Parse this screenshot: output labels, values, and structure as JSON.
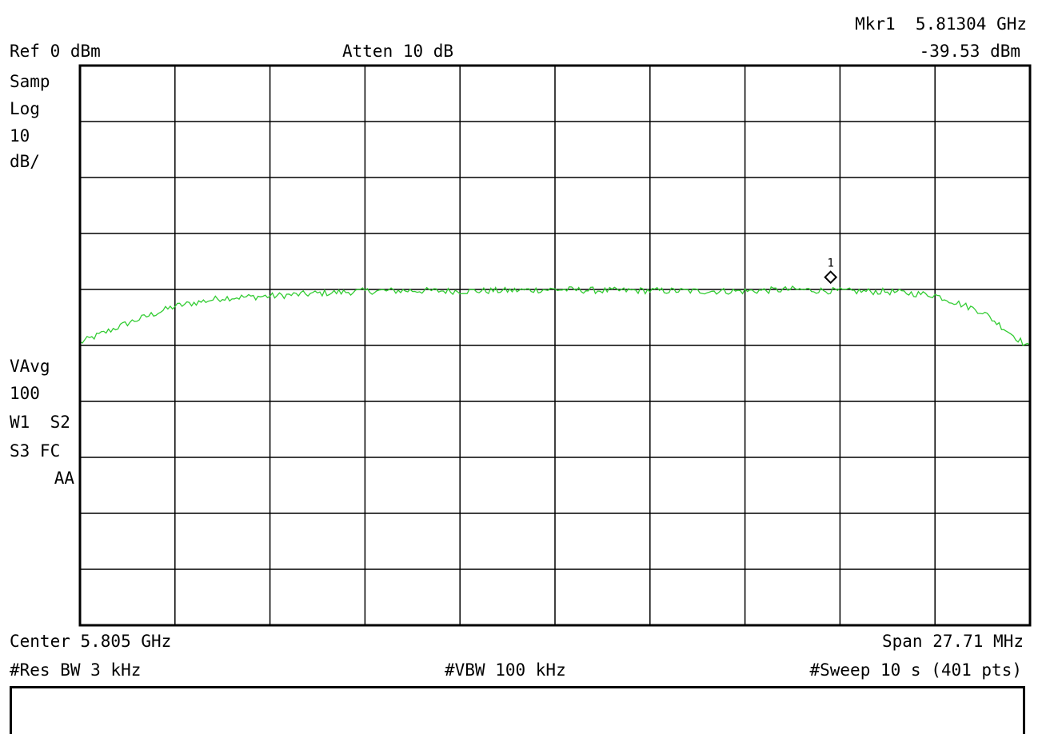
{
  "header": {
    "ref_level": "Ref 0 dBm",
    "attenuation": "Atten 10 dB",
    "marker_label": "Mkr1  5.81304 GHz",
    "marker_level": "-39.53 dBm"
  },
  "left_annotations": {
    "detector": "Samp",
    "scale_type": "Log",
    "scale_value": "10",
    "scale_unit": "dB/",
    "avg_mode": "VAvg",
    "avg_count": "100",
    "status_1": "W1  S2",
    "status_2": "S3 FC",
    "status_3": "AA"
  },
  "footer": {
    "center": "Center 5.805 GHz",
    "span": "Span 27.71 MHz",
    "res_bw": "#Res BW 3 kHz",
    "vbw": "#VBW 100 kHz",
    "sweep": "#Sweep 10 s (401 pts)"
  },
  "colors": {
    "trace": "#33cc33",
    "grid": "#000000",
    "background": "#ffffff"
  },
  "chart_data": {
    "type": "line",
    "title": "",
    "xlabel": "",
    "ylabel": "",
    "x_unit": "GHz",
    "y_unit": "dBm",
    "xlim": [
      5.791145,
      5.818855
    ],
    "ylim": [
      -100,
      0
    ],
    "divisions": {
      "x": 10,
      "y": 10
    },
    "grid": true,
    "marker": {
      "label": "1",
      "x": 5.81304,
      "y": -39.53
    },
    "series": [
      {
        "x": [
          5.79115,
          5.79254,
          5.79392,
          5.79531,
          5.79669,
          5.79808,
          5.79946,
          5.80085,
          5.80223,
          5.80362,
          5.805,
          5.80639,
          5.80777,
          5.80916,
          5.81054,
          5.81193,
          5.81331,
          5.8147,
          5.81608,
          5.81747,
          5.81886
        ],
        "values": [
          -49.5,
          -46.0,
          -43.0,
          -41.5,
          -41.2,
          -40.7,
          -40.3,
          -40.2,
          -40.3,
          -40.2,
          -40.0,
          -40.2,
          -40.2,
          -40.3,
          -40.3,
          -40.0,
          -40.3,
          -40.4,
          -41.0,
          -44.0,
          -50.5
        ]
      }
    ]
  }
}
